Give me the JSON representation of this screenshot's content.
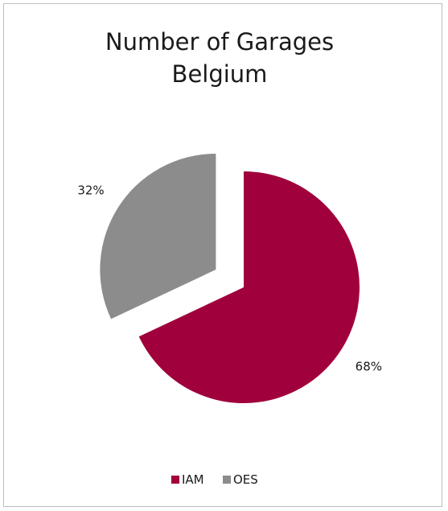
{
  "chart_data": {
    "type": "pie",
    "title": "Number of Garages",
    "subtitle": "Belgium",
    "categories": [
      "IAM",
      "OES"
    ],
    "values": [
      68,
      32
    ],
    "value_suffix": "%",
    "colors": [
      "#a0003c",
      "#8c8c8c"
    ],
    "exploded": [
      false,
      true
    ],
    "legend": {
      "position": "bottom",
      "entries": [
        "IAM",
        "OES"
      ]
    },
    "data_labels": [
      "68%",
      "32%"
    ]
  }
}
